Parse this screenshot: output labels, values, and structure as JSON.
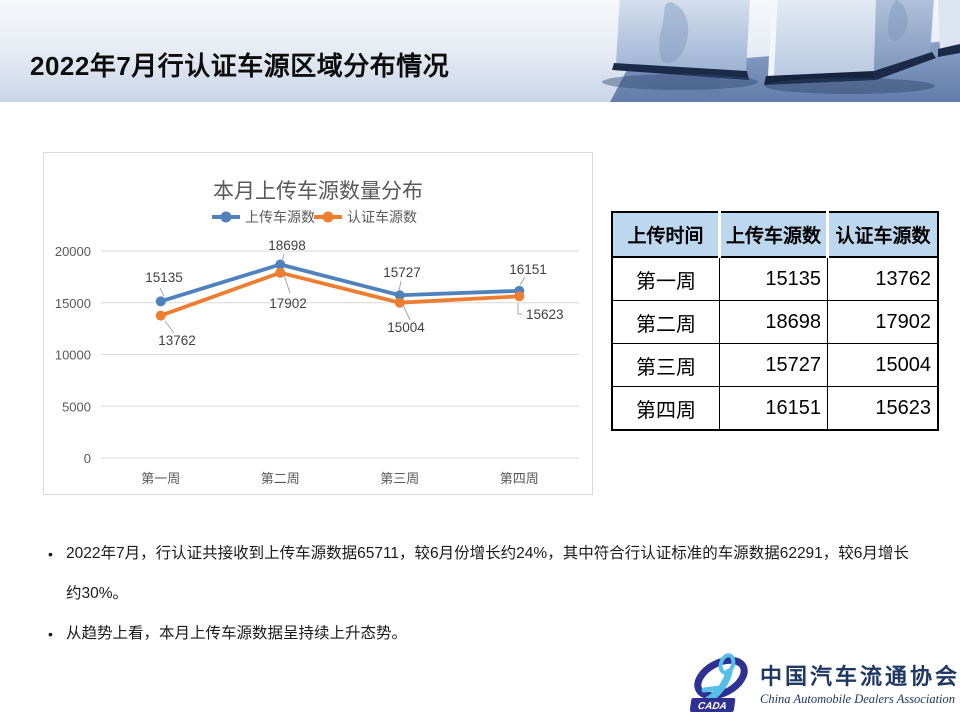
{
  "slide": {
    "title": "2022年7月行认证车源区域分布情况"
  },
  "chart_data": {
    "type": "line",
    "title": "本月上传车源数量分布",
    "categories": [
      "第一周",
      "第二周",
      "第三周",
      "第四周"
    ],
    "series": [
      {
        "name": "上传车源数",
        "color": "#4F81BD",
        "values": [
          15135,
          18698,
          15727,
          16151
        ]
      },
      {
        "name": "认证车源数",
        "color": "#ED7D31",
        "values": [
          13762,
          17902,
          15004,
          15623
        ]
      }
    ],
    "xlabel": "",
    "ylabel": "",
    "ylim": [
      0,
      20000
    ],
    "yticks": [
      0,
      5000,
      10000,
      15000,
      20000
    ],
    "grid": true,
    "legend_position": "top",
    "title_color": "#595959",
    "axis_color": "#595959",
    "grid_color": "#d9d9d9",
    "label_color": "#404040",
    "leader_color": "#a6a6a6"
  },
  "table": {
    "headers": [
      "上传时间",
      "上传车源数",
      "认证车源数"
    ],
    "rows": [
      [
        "第一周",
        "15135",
        "13762"
      ],
      [
        "第二周",
        "18698",
        "17902"
      ],
      [
        "第三周",
        "15727",
        "15004"
      ],
      [
        "第四周",
        "16151",
        "15623"
      ]
    ]
  },
  "bullets": [
    "2022年7月，行认证共接收到上传车源数据65711，较6月份增长约24%，其中符合行认证标准的车源数据62291，较6月增长约30%。",
    "从趋势上看，本月上传车源数据呈持续上升态势。"
  ],
  "logo": {
    "badge": "CADA",
    "name_cn": "中国汽车流通协会",
    "name_en": "China Automobile Dealers Association"
  }
}
